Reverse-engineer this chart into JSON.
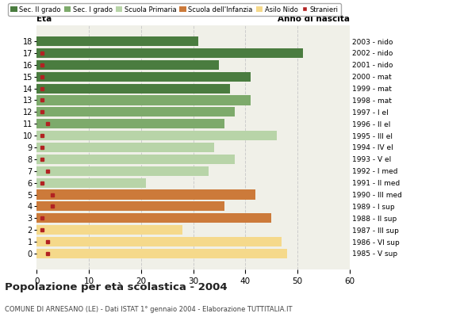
{
  "ages": [
    18,
    17,
    16,
    15,
    14,
    13,
    12,
    11,
    10,
    9,
    8,
    7,
    6,
    5,
    4,
    3,
    2,
    1,
    0
  ],
  "values": [
    31,
    51,
    35,
    41,
    37,
    41,
    38,
    36,
    46,
    34,
    38,
    33,
    21,
    42,
    36,
    45,
    28,
    47,
    48
  ],
  "stranieri": [
    0,
    1,
    1,
    1,
    1,
    1,
    1,
    2,
    1,
    1,
    1,
    2,
    1,
    3,
    3,
    1,
    1,
    2,
    2
  ],
  "anno_nascita": [
    "1985 - V sup",
    "1986 - VI sup",
    "1987 - III sup",
    "1988 - II sup",
    "1989 - I sup",
    "1990 - III med",
    "1991 - II med",
    "1992 - I med",
    "1993 - V el",
    "1994 - IV el",
    "1995 - III el",
    "1996 - II el",
    "1997 - I el",
    "1998 - mat",
    "1999 - mat",
    "2000 - mat",
    "2001 - nido",
    "2002 - nido",
    "2003 - nido"
  ],
  "bar_colors": [
    "#4a7c3f",
    "#4a7c3f",
    "#4a7c3f",
    "#4a7c3f",
    "#4a7c3f",
    "#7daa6b",
    "#7daa6b",
    "#7daa6b",
    "#b8d4a8",
    "#b8d4a8",
    "#b8d4a8",
    "#b8d4a8",
    "#b8d4a8",
    "#cc7a3a",
    "#cc7a3a",
    "#cc7a3a",
    "#f5d98b",
    "#f5d98b",
    "#f5d98b"
  ],
  "legend_labels": [
    "Sec. II grado",
    "Sec. I grado",
    "Scuola Primaria",
    "Scuola dell'Infanzia",
    "Asilo Nido",
    "Stranieri"
  ],
  "legend_colors": [
    "#4a7c3f",
    "#7daa6b",
    "#b8d4a8",
    "#cc7a3a",
    "#f5d98b",
    "#b22222"
  ],
  "stranieri_color": "#b22222",
  "title": "Popolazione per età scolastica - 2004",
  "subtitle": "COMUNE DI ARNESANO (LE) - Dati ISTAT 1° gennaio 2004 - Elaborazione TUTTITALIA.IT",
  "eta_label": "Età",
  "anno_label": "Anno di nascita",
  "xlim": [
    0,
    60
  ],
  "xticks": [
    0,
    10,
    20,
    30,
    40,
    50,
    60
  ],
  "grid_color": "#cccccc",
  "bg_color": "#ffffff",
  "plot_bg": "#f0f0e8"
}
